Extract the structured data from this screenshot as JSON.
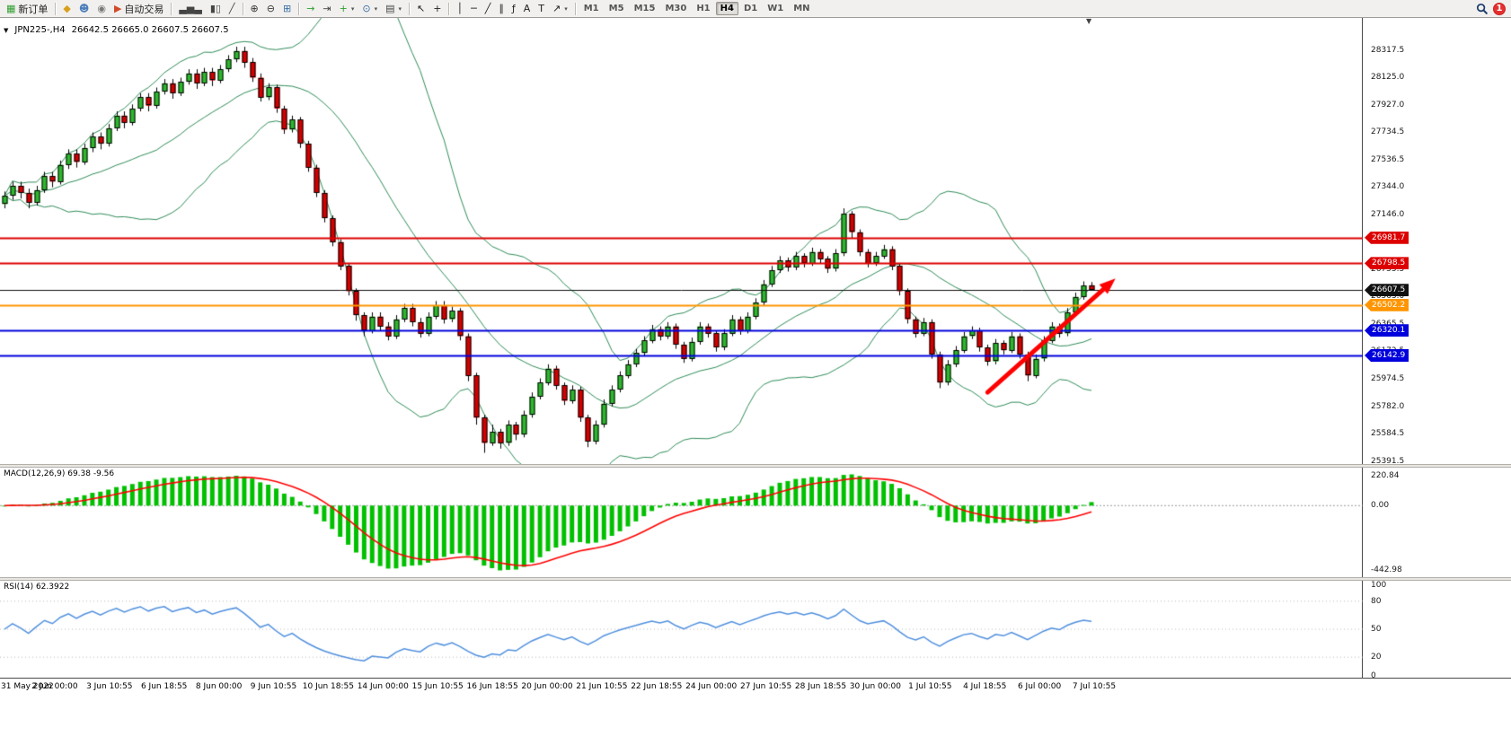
{
  "toolbar": {
    "notification_count": "1",
    "buttons": [
      {
        "kind": "labelbtn",
        "name": "new-order-button",
        "icon": "new-order-icon",
        "glyph": "▦",
        "glyph_color": "#2f9e2f",
        "label": "新订单"
      },
      {
        "kind": "sep"
      },
      {
        "kind": "icon",
        "name": "metaeditor-button",
        "icon": "metaeditor-icon",
        "glyph": "◆",
        "glyph_color": "#d8a01d"
      },
      {
        "kind": "icon",
        "name": "profiles-button",
        "icon": "profiles-icon",
        "glyph": "☻",
        "glyph_color": "#4a7ebb"
      },
      {
        "kind": "icon",
        "name": "signals-button",
        "icon": "signals-icon",
        "glyph": "◉",
        "glyph_color": "#7a7a7a"
      },
      {
        "kind": "labelbtn",
        "name": "autotrading-button",
        "icon": "autotrading-icon",
        "glyph": "▶",
        "glyph_color": "#d2492a",
        "label": "自动交易"
      },
      {
        "kind": "sep"
      },
      {
        "kind": "icon",
        "name": "bar-chart-button",
        "icon": "bar-chart-icon",
        "glyph": "▃▅▃",
        "glyph_color": "#444444"
      },
      {
        "kind": "icon",
        "name": "candlestick-chart-button",
        "icon": "candlestick-chart-icon",
        "glyph": "▮▯",
        "glyph_color": "#444444"
      },
      {
        "kind": "icon",
        "name": "line-chart-button",
        "icon": "line-chart-icon",
        "glyph": "╱",
        "glyph_color": "#444444"
      },
      {
        "kind": "sep"
      },
      {
        "kind": "icon",
        "name": "zoom-in-button",
        "icon": "zoom-in-icon",
        "glyph": "⊕",
        "glyph_color": "#333333"
      },
      {
        "kind": "icon",
        "name": "zoom-out-button",
        "icon": "zoom-out-icon",
        "glyph": "⊖",
        "glyph_color": "#333333"
      },
      {
        "kind": "icon",
        "name": "tile-windows-button",
        "icon": "tile-windows-icon",
        "glyph": "⊞",
        "glyph_color": "#3a6ea5"
      },
      {
        "kind": "sep"
      },
      {
        "kind": "icon",
        "name": "auto-scroll-button",
        "icon": "auto-scroll-icon",
        "glyph": "→",
        "glyph_color": "#2f9e2f"
      },
      {
        "kind": "icon",
        "name": "chart-shift-button",
        "icon": "chart-shift-icon",
        "glyph": "⇥",
        "glyph_color": "#444444"
      },
      {
        "kind": "icon",
        "name": "indicators-button",
        "icon": "indicators-icon",
        "glyph": "+",
        "glyph_color": "#2f9e2f",
        "dropdown": true
      },
      {
        "kind": "icon",
        "name": "periods-button",
        "icon": "periods-icon",
        "glyph": "⊙",
        "glyph_color": "#3a6ea5",
        "dropdown": true
      },
      {
        "kind": "icon",
        "name": "templates-button",
        "icon": "templates-icon",
        "glyph": "▤",
        "glyph_color": "#444444",
        "dropdown": true
      },
      {
        "kind": "sep"
      },
      {
        "kind": "icon",
        "name": "cursor-button",
        "icon": "cursor-icon",
        "glyph": "↖",
        "glyph_color": "#222222"
      },
      {
        "kind": "icon",
        "name": "crosshair-button",
        "icon": "crosshair-icon",
        "glyph": "+",
        "glyph_color": "#222222"
      },
      {
        "kind": "sep"
      },
      {
        "kind": "icon",
        "name": "vertical-line-button",
        "icon": "vertical-line-icon",
        "glyph": "│",
        "glyph_color": "#222222"
      },
      {
        "kind": "icon",
        "name": "horizontal-line-button",
        "icon": "horizontal-line-icon",
        "glyph": "─",
        "glyph_color": "#222222"
      },
      {
        "kind": "icon",
        "name": "trendline-button",
        "icon": "trendline-icon",
        "glyph": "╱",
        "glyph_color": "#222222"
      },
      {
        "kind": "icon",
        "name": "channel-button",
        "icon": "equidistant-channel-icon",
        "glyph": "∥",
        "glyph_color": "#222222"
      },
      {
        "kind": "icon",
        "name": "fibonacci-button",
        "icon": "fibonacci-icon",
        "glyph": "ƒ",
        "glyph_color": "#222222"
      },
      {
        "kind": "icon",
        "name": "text-button",
        "icon": "text-icon",
        "glyph": "A",
        "glyph_color": "#222222"
      },
      {
        "kind": "icon",
        "name": "text-label-button",
        "icon": "text-label-icon",
        "glyph": "T",
        "glyph_color": "#222222"
      },
      {
        "kind": "icon",
        "name": "arrows-button",
        "icon": "arrow-shapes-icon",
        "glyph": "↗",
        "glyph_color": "#222222",
        "dropdown": true
      },
      {
        "kind": "sep"
      }
    ],
    "timeframes": [
      "M1",
      "M5",
      "M15",
      "M30",
      "H1",
      "H4",
      "D1",
      "W1",
      "MN"
    ],
    "active_timeframe": "H4"
  },
  "chart_data": {
    "type": "candlestick",
    "symbol": "JPN225-",
    "timeframe": "H4",
    "symbol_tf_display": "JPN225-,H4",
    "ohlc_display": "26642.5 26665.0 26607.5 26607.5",
    "ylim": [
      25370,
      28545
    ],
    "y_ticks": [
      "28317.5",
      "28125.0",
      "27927.0",
      "27734.5",
      "27536.5",
      "27344.0",
      "27146.0",
      "26953.5",
      "26755.5",
      "26563.0",
      "26365.5",
      "26172.5",
      "25974.5",
      "25782.0",
      "25584.5",
      "25391.5"
    ],
    "x_labels": [
      "31 May 2022",
      "2 Jun 00:00",
      "3 Jun 10:55",
      "6 Jun 18:55",
      "8 Jun 00:00",
      "9 Jun 10:55",
      "10 Jun 18:55",
      "14 Jun 00:00",
      "15 Jun 10:55",
      "16 Jun 18:55",
      "20 Jun 00:00",
      "21 Jun 10:55",
      "22 Jun 18:55",
      "24 Jun 00:00",
      "27 Jun 10:55",
      "28 Jun 18:55",
      "30 Jun 00:00",
      "1 Jul 10:55",
      "4 Jul 18:55",
      "6 Jul 00:00",
      "7 Jul 10:55"
    ],
    "style": {
      "bull_color": "#2eb82e",
      "bear_color": "#d40000",
      "wick_color": "#000000",
      "body_border": "#000000",
      "bollinger_color": "#2E8B57"
    },
    "overlays": {
      "bollinger": {
        "period": 20,
        "deviation": 2
      }
    },
    "hlines": [
      {
        "value": 26981.7,
        "label": "26981.7",
        "color": "#dd0000",
        "width": 2
      },
      {
        "value": 26798.5,
        "label": "26798.5",
        "color": "#dd0000",
        "width": 2
      },
      {
        "value": 26607.5,
        "label": "26607.5",
        "color": "#111111",
        "width": 1
      },
      {
        "value": 26502.2,
        "label": "26502.2",
        "color": "#ff9500",
        "width": 2
      },
      {
        "value": 26320.1,
        "label": "26320.1",
        "color": "#0000dd",
        "width": 2
      },
      {
        "value": 26142.9,
        "label": "26142.9",
        "color": "#0000dd",
        "width": 2
      }
    ],
    "annotations": [
      {
        "type": "arrow",
        "color": "#ff0000",
        "width": 5,
        "from": {
          "index": 123,
          "price": 25880
        },
        "to": {
          "index": 139,
          "price": 26690
        }
      }
    ],
    "indicators": [
      {
        "type": "MACD",
        "params": [
          12,
          26,
          9
        ],
        "label": "MACD(12,26,9) 69.38 -9.56",
        "hist_color": "#00c000",
        "signal_color": "#ff0000",
        "y_labels": [
          "220.84",
          "0.00",
          "-442.98"
        ]
      },
      {
        "type": "RSI",
        "params": [
          14
        ],
        "label": "RSI(14) 62.3922",
        "color": "#4f8fde",
        "levels": [
          80,
          50,
          20
        ],
        "ylim": [
          0,
          100
        ],
        "y_labels": [
          "100",
          "80",
          "50",
          "20",
          "0"
        ]
      }
    ],
    "candles": [
      [
        27220,
        27310,
        27190,
        27280
      ],
      [
        27280,
        27380,
        27250,
        27350
      ],
      [
        27350,
        27380,
        27260,
        27300
      ],
      [
        27300,
        27330,
        27190,
        27230
      ],
      [
        27230,
        27350,
        27210,
        27320
      ],
      [
        27320,
        27450,
        27300,
        27420
      ],
      [
        27420,
        27450,
        27340,
        27380
      ],
      [
        27380,
        27530,
        27360,
        27500
      ],
      [
        27500,
        27610,
        27470,
        27580
      ],
      [
        27580,
        27610,
        27480,
        27520
      ],
      [
        27520,
        27650,
        27500,
        27620
      ],
      [
        27620,
        27730,
        27590,
        27700
      ],
      [
        27700,
        27730,
        27610,
        27650
      ],
      [
        27650,
        27790,
        27630,
        27760
      ],
      [
        27760,
        27880,
        27740,
        27850
      ],
      [
        27850,
        27880,
        27760,
        27800
      ],
      [
        27800,
        27930,
        27780,
        27900
      ],
      [
        27900,
        28010,
        27880,
        27980
      ],
      [
        27980,
        28010,
        27880,
        27920
      ],
      [
        27920,
        28050,
        27900,
        28020
      ],
      [
        28020,
        28110,
        28000,
        28080
      ],
      [
        28080,
        28110,
        27970,
        28010
      ],
      [
        28010,
        28120,
        27990,
        28090
      ],
      [
        28090,
        28180,
        28070,
        28150
      ],
      [
        28150,
        28180,
        28040,
        28080
      ],
      [
        28080,
        28190,
        28060,
        28160
      ],
      [
        28160,
        28190,
        28060,
        28100
      ],
      [
        28100,
        28210,
        28080,
        28180
      ],
      [
        28180,
        28280,
        28160,
        28250
      ],
      [
        28250,
        28340,
        28230,
        28310
      ],
      [
        28310,
        28340,
        28190,
        28230
      ],
      [
        28230,
        28260,
        28090,
        28120
      ],
      [
        28120,
        28150,
        27950,
        27980
      ],
      [
        27980,
        28080,
        27960,
        28050
      ],
      [
        28050,
        28070,
        27870,
        27900
      ],
      [
        27900,
        27920,
        27720,
        27750
      ],
      [
        27750,
        27850,
        27730,
        27820
      ],
      [
        27820,
        27840,
        27620,
        27650
      ],
      [
        27650,
        27670,
        27450,
        27480
      ],
      [
        27480,
        27500,
        27270,
        27300
      ],
      [
        27300,
        27320,
        27090,
        27120
      ],
      [
        27120,
        27140,
        26920,
        26950
      ],
      [
        26950,
        26970,
        26750,
        26780
      ],
      [
        26780,
        26800,
        26570,
        26600
      ],
      [
        26600,
        26620,
        26390,
        26430
      ],
      [
        26430,
        26450,
        26280,
        26320
      ],
      [
        26320,
        26450,
        26300,
        26420
      ],
      [
        26420,
        26450,
        26320,
        26350
      ],
      [
        26350,
        26380,
        26250,
        26280
      ],
      [
        26280,
        26430,
        26260,
        26400
      ],
      [
        26400,
        26510,
        26380,
        26480
      ],
      [
        26480,
        26510,
        26350,
        26380
      ],
      [
        26380,
        26410,
        26270,
        26300
      ],
      [
        26300,
        26450,
        26280,
        26420
      ],
      [
        26420,
        26530,
        26400,
        26500
      ],
      [
        26500,
        26530,
        26370,
        26400
      ],
      [
        26400,
        26490,
        26380,
        26460
      ],
      [
        26460,
        26480,
        26250,
        26280
      ],
      [
        26280,
        26300,
        25960,
        26000
      ],
      [
        26000,
        26020,
        25650,
        25700
      ],
      [
        25700,
        25720,
        25450,
        25520
      ],
      [
        25520,
        25650,
        25500,
        25600
      ],
      [
        25600,
        25620,
        25480,
        25520
      ],
      [
        25520,
        25680,
        25500,
        25650
      ],
      [
        25650,
        25670,
        25540,
        25580
      ],
      [
        25580,
        25750,
        25560,
        25720
      ],
      [
        25720,
        25880,
        25700,
        25850
      ],
      [
        25850,
        25980,
        25830,
        25950
      ],
      [
        25950,
        26080,
        25930,
        26050
      ],
      [
        26050,
        26070,
        25900,
        25930
      ],
      [
        25930,
        25950,
        25790,
        25820
      ],
      [
        25820,
        25930,
        25800,
        25900
      ],
      [
        25900,
        25920,
        25670,
        25700
      ],
      [
        25700,
        25720,
        25490,
        25530
      ],
      [
        25530,
        25680,
        25510,
        25650
      ],
      [
        25650,
        25830,
        25630,
        25800
      ],
      [
        25800,
        25930,
        25780,
        25900
      ],
      [
        25900,
        26030,
        25880,
        26000
      ],
      [
        26000,
        26110,
        25980,
        26080
      ],
      [
        26080,
        26190,
        26060,
        26160
      ],
      [
        26160,
        26280,
        26140,
        26250
      ],
      [
        26250,
        26360,
        26230,
        26330
      ],
      [
        26330,
        26350,
        26250,
        26280
      ],
      [
        26280,
        26380,
        26260,
        26350
      ],
      [
        26350,
        26370,
        26190,
        26220
      ],
      [
        26220,
        26240,
        26090,
        26120
      ],
      [
        26120,
        26270,
        26100,
        26240
      ],
      [
        26240,
        26380,
        26220,
        26350
      ],
      [
        26350,
        26370,
        26270,
        26300
      ],
      [
        26300,
        26320,
        26170,
        26200
      ],
      [
        26200,
        26330,
        26180,
        26300
      ],
      [
        26300,
        26430,
        26280,
        26400
      ],
      [
        26400,
        26420,
        26290,
        26320
      ],
      [
        26320,
        26450,
        26300,
        26420
      ],
      [
        26420,
        26550,
        26400,
        26520
      ],
      [
        26520,
        26680,
        26500,
        26650
      ],
      [
        26650,
        26780,
        26630,
        26750
      ],
      [
        26750,
        26850,
        26730,
        26820
      ],
      [
        26820,
        26840,
        26740,
        26770
      ],
      [
        26770,
        26880,
        26750,
        26850
      ],
      [
        26850,
        26870,
        26770,
        26800
      ],
      [
        26800,
        26910,
        26780,
        26880
      ],
      [
        26880,
        26900,
        26800,
        26830
      ],
      [
        26830,
        26850,
        26730,
        26760
      ],
      [
        26760,
        26900,
        26740,
        26870
      ],
      [
        26870,
        27190,
        26850,
        27150
      ],
      [
        27150,
        27170,
        26980,
        27020
      ],
      [
        27020,
        27040,
        26850,
        26880
      ],
      [
        26880,
        26900,
        26770,
        26800
      ],
      [
        26800,
        26880,
        26780,
        26850
      ],
      [
        26850,
        26930,
        26830,
        26900
      ],
      [
        26900,
        26920,
        26750,
        26780
      ],
      [
        26780,
        26800,
        26570,
        26600
      ],
      [
        26600,
        26620,
        26370,
        26400
      ],
      [
        26400,
        26420,
        26270,
        26300
      ],
      [
        26300,
        26410,
        26280,
        26380
      ],
      [
        26380,
        26400,
        26120,
        26150
      ],
      [
        26150,
        26170,
        25910,
        25950
      ],
      [
        25950,
        26110,
        25930,
        26080
      ],
      [
        26080,
        26210,
        26060,
        26180
      ],
      [
        26180,
        26310,
        26160,
        26280
      ],
      [
        26280,
        26350,
        26260,
        26320
      ],
      [
        26320,
        26340,
        26170,
        26200
      ],
      [
        26200,
        26220,
        26070,
        26100
      ],
      [
        26100,
        26260,
        26080,
        26230
      ],
      [
        26230,
        26250,
        26150,
        26180
      ],
      [
        26180,
        26310,
        26160,
        26280
      ],
      [
        26280,
        26300,
        26120,
        26150
      ],
      [
        26150,
        26170,
        25960,
        26000
      ],
      [
        26000,
        26150,
        25980,
        26120
      ],
      [
        26120,
        26280,
        26100,
        26250
      ],
      [
        26250,
        26380,
        26230,
        26350
      ],
      [
        26350,
        26370,
        26270,
        26300
      ],
      [
        26300,
        26480,
        26280,
        26450
      ],
      [
        26450,
        26590,
        26430,
        26560
      ],
      [
        26560,
        26670,
        26540,
        26640
      ],
      [
        26642.5,
        26665.0,
        26607.5,
        26607.5
      ]
    ]
  }
}
